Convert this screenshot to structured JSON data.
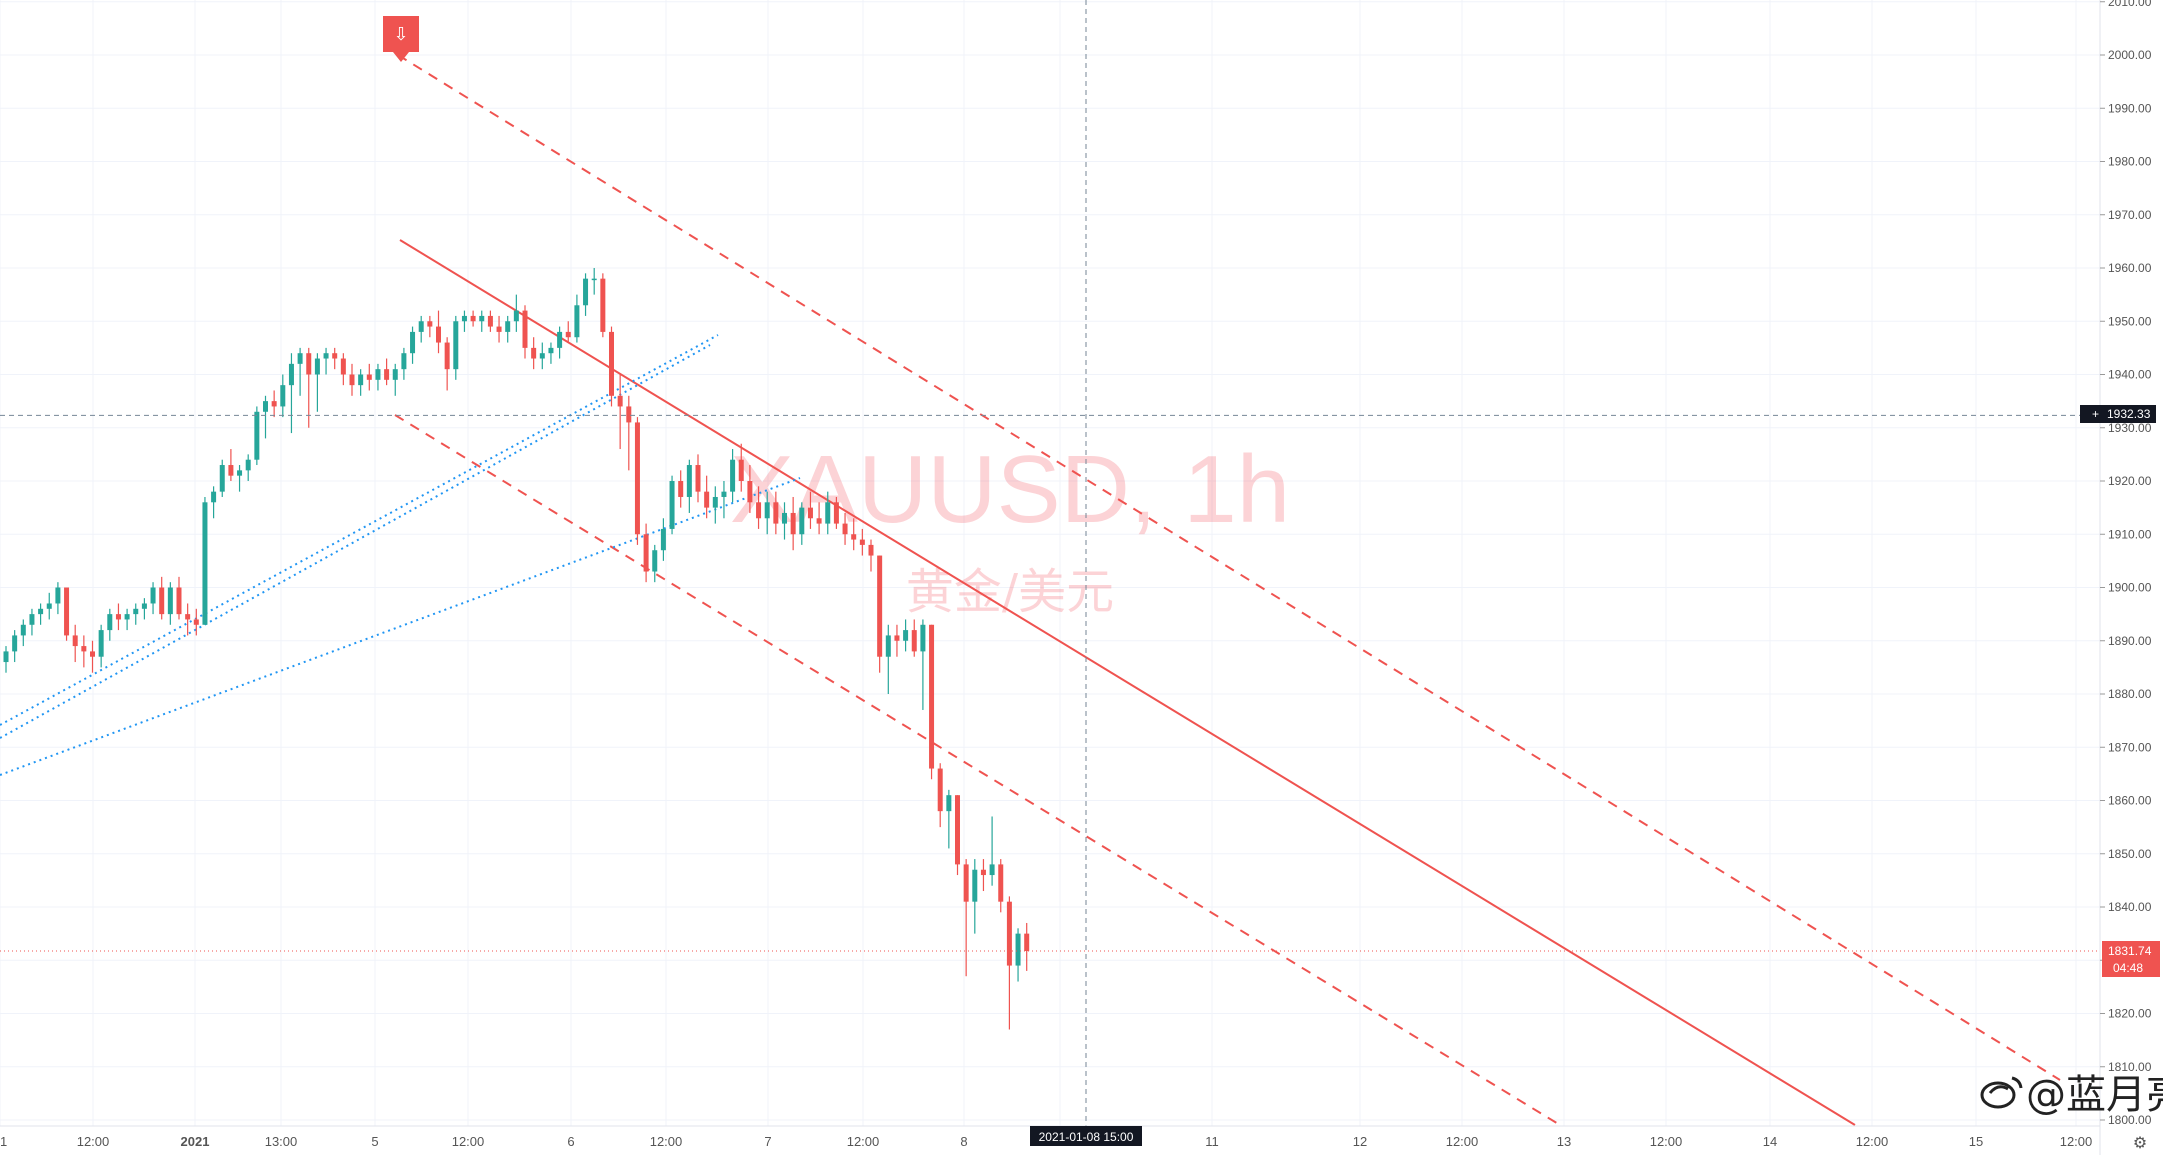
{
  "chart_data": {
    "type": "candlestick",
    "symbol": "XAUUSD, 1h",
    "subtitle": "黄金/美元",
    "ylim": [
      1800,
      2010
    ],
    "y_ticks": [
      1800,
      1810,
      1820,
      1830,
      1840,
      1850,
      1860,
      1870,
      1880,
      1890,
      1900,
      1910,
      1920,
      1930,
      1940,
      1950,
      1960,
      1970,
      1980,
      1990,
      2000,
      2010
    ],
    "x_ticks": [
      "1",
      "12:00",
      "2021",
      "13:00",
      "5",
      "12:00",
      "6",
      "12:00",
      "7",
      "12:00",
      "8",
      "12:00",
      "11",
      "12",
      "12:00",
      "13",
      "12:00",
      "14",
      "12:00",
      "15",
      "12:00"
    ],
    "grid": true,
    "crosshair": {
      "price_label": "1932.33",
      "time_label": "2021-01-08   15:00"
    },
    "last_price": {
      "price_label": "1831.74",
      "countdown": "04:48"
    },
    "candles_ohlc": [
      [
        1886,
        1889,
        1884,
        1888
      ],
      [
        1888,
        1892,
        1886,
        1891
      ],
      [
        1891,
        1894,
        1889,
        1893
      ],
      [
        1893,
        1896,
        1891,
        1895
      ],
      [
        1895,
        1897,
        1893,
        1896
      ],
      [
        1896,
        1899,
        1894,
        1897
      ],
      [
        1897,
        1901,
        1895,
        1900
      ],
      [
        1900,
        1900,
        1890,
        1891
      ],
      [
        1891,
        1893,
        1886,
        1889
      ],
      [
        1889,
        1891,
        1885,
        1888
      ],
      [
        1888,
        1890,
        1884,
        1887
      ],
      [
        1887,
        1893,
        1885,
        1892
      ],
      [
        1892,
        1896,
        1890,
        1895
      ],
      [
        1895,
        1897,
        1892,
        1894
      ],
      [
        1894,
        1896,
        1892,
        1895
      ],
      [
        1895,
        1897,
        1893,
        1896
      ],
      [
        1896,
        1898,
        1894,
        1897
      ],
      [
        1897,
        1901,
        1895,
        1900
      ],
      [
        1900,
        1902,
        1894,
        1895
      ],
      [
        1895,
        1901,
        1893,
        1900
      ],
      [
        1900,
        1902,
        1894,
        1895
      ],
      [
        1895,
        1897,
        1891,
        1894
      ],
      [
        1894,
        1896,
        1891,
        1893
      ],
      [
        1893,
        1917,
        1893,
        1916
      ],
      [
        1916,
        1919,
        1913,
        1918
      ],
      [
        1918,
        1924,
        1917,
        1923
      ],
      [
        1923,
        1926,
        1920,
        1921
      ],
      [
        1921,
        1923,
        1918,
        1922
      ],
      [
        1922,
        1925,
        1920,
        1924
      ],
      [
        1924,
        1934,
        1923,
        1933
      ],
      [
        1933,
        1936,
        1928,
        1935
      ],
      [
        1935,
        1937,
        1932,
        1934
      ],
      [
        1934,
        1940,
        1932,
        1938
      ],
      [
        1938,
        1944,
        1929,
        1942
      ],
      [
        1942,
        1945,
        1936,
        1944
      ],
      [
        1944,
        1945,
        1930,
        1940
      ],
      [
        1940,
        1944,
        1933,
        1943
      ],
      [
        1943,
        1945,
        1940,
        1944
      ],
      [
        1944,
        1945,
        1941,
        1943
      ],
      [
        1943,
        1944,
        1938,
        1940
      ],
      [
        1940,
        1942,
        1936,
        1938
      ],
      [
        1938,
        1941,
        1936,
        1940
      ],
      [
        1940,
        1942,
        1937,
        1939
      ],
      [
        1939,
        1942,
        1937,
        1941
      ],
      [
        1941,
        1943,
        1938,
        1939
      ],
      [
        1939,
        1942,
        1936,
        1941
      ],
      [
        1941,
        1945,
        1939,
        1944
      ],
      [
        1944,
        1949,
        1942,
        1948
      ],
      [
        1948,
        1951,
        1946,
        1950
      ],
      [
        1950,
        1951,
        1947,
        1949
      ],
      [
        1949,
        1952,
        1944,
        1946
      ],
      [
        1946,
        1947,
        1937,
        1941
      ],
      [
        1941,
        1951,
        1939,
        1950
      ],
      [
        1950,
        1952,
        1948,
        1951
      ],
      [
        1951,
        1952,
        1949,
        1950
      ],
      [
        1950,
        1952,
        1948,
        1951
      ],
      [
        1951,
        1952,
        1948,
        1949
      ],
      [
        1949,
        1951,
        1946,
        1948
      ],
      [
        1948,
        1951,
        1946,
        1950
      ],
      [
        1950,
        1955,
        1948,
        1952
      ],
      [
        1952,
        1953,
        1943,
        1945
      ],
      [
        1945,
        1947,
        1941,
        1943
      ],
      [
        1943,
        1946,
        1941,
        1944
      ],
      [
        1944,
        1946,
        1942,
        1945
      ],
      [
        1945,
        1949,
        1943,
        1948
      ],
      [
        1948,
        1950,
        1946,
        1947
      ],
      [
        1947,
        1955,
        1946,
        1953
      ],
      [
        1953,
        1959,
        1951,
        1958
      ],
      [
        1958,
        1960,
        1955,
        1958
      ],
      [
        1958,
        1959,
        1947,
        1948
      ],
      [
        1948,
        1949,
        1934,
        1936
      ],
      [
        1936,
        1940,
        1926,
        1934
      ],
      [
        1934,
        1936,
        1922,
        1931
      ],
      [
        1931,
        1932,
        1908,
        1910
      ],
      [
        1910,
        1912,
        1901,
        1903
      ],
      [
        1903,
        1908,
        1901,
        1907
      ],
      [
        1907,
        1913,
        1905,
        1911
      ],
      [
        1911,
        1921,
        1910,
        1920
      ],
      [
        1920,
        1922,
        1915,
        1917
      ],
      [
        1917,
        1924,
        1914,
        1923
      ],
      [
        1923,
        1925,
        1916,
        1918
      ],
      [
        1918,
        1921,
        1913,
        1915
      ],
      [
        1915,
        1919,
        1912,
        1917
      ],
      [
        1917,
        1920,
        1913,
        1918
      ],
      [
        1918,
        1926,
        1916,
        1924
      ],
      [
        1924,
        1927,
        1918,
        1920
      ],
      [
        1920,
        1923,
        1914,
        1916
      ],
      [
        1916,
        1919,
        1911,
        1913
      ],
      [
        1913,
        1918,
        1910,
        1916
      ],
      [
        1916,
        1918,
        1910,
        1912
      ],
      [
        1912,
        1916,
        1909,
        1914
      ],
      [
        1914,
        1917,
        1907,
        1910
      ],
      [
        1910,
        1916,
        1908,
        1915
      ],
      [
        1915,
        1918,
        1911,
        1913
      ],
      [
        1913,
        1916,
        1910,
        1912
      ],
      [
        1912,
        1918,
        1910,
        1916
      ],
      [
        1916,
        1917,
        1911,
        1912
      ],
      [
        1912,
        1914,
        1908,
        1910
      ],
      [
        1910,
        1913,
        1907,
        1909
      ],
      [
        1909,
        1911,
        1906,
        1908
      ],
      [
        1908,
        1909,
        1903,
        1906
      ],
      [
        1906,
        1906,
        1884,
        1887
      ],
      [
        1887,
        1893,
        1880,
        1891
      ],
      [
        1891,
        1893,
        1887,
        1890
      ],
      [
        1890,
        1894,
        1888,
        1892
      ],
      [
        1892,
        1894,
        1887,
        1888
      ],
      [
        1888,
        1894,
        1877,
        1893
      ],
      [
        1893,
        1893,
        1864,
        1866
      ],
      [
        1866,
        1867,
        1855,
        1858
      ],
      [
        1858,
        1862,
        1851,
        1861
      ],
      [
        1861,
        1861,
        1846,
        1848
      ],
      [
        1848,
        1849,
        1827,
        1841
      ],
      [
        1841,
        1849,
        1835,
        1847
      ],
      [
        1847,
        1849,
        1843,
        1846
      ],
      [
        1846,
        1857,
        1844,
        1848
      ],
      [
        1848,
        1849,
        1839,
        1841
      ],
      [
        1841,
        1842,
        1817,
        1829
      ],
      [
        1829,
        1836,
        1826,
        1835
      ],
      [
        1835,
        1837,
        1828,
        1831.74
      ]
    ],
    "drawings": [
      "solid red downtrend line",
      "parallel dashed red channel lines",
      "blue dotted rising trend lines",
      "red arrow-down marker"
    ]
  },
  "marker": {
    "icon": "arrow-down-icon",
    "glyph": "⇩"
  },
  "brand": {
    "logo": "weibo-icon",
    "text": "@蓝月亮"
  },
  "settings_icon": {
    "glyph": "⚙",
    "icon": "gear-icon"
  },
  "colors": {
    "up": "#26a69a",
    "down": "#ef5350",
    "line": "#ef5350",
    "dotted": "#2196f3",
    "grid": "#f0f3fa"
  }
}
